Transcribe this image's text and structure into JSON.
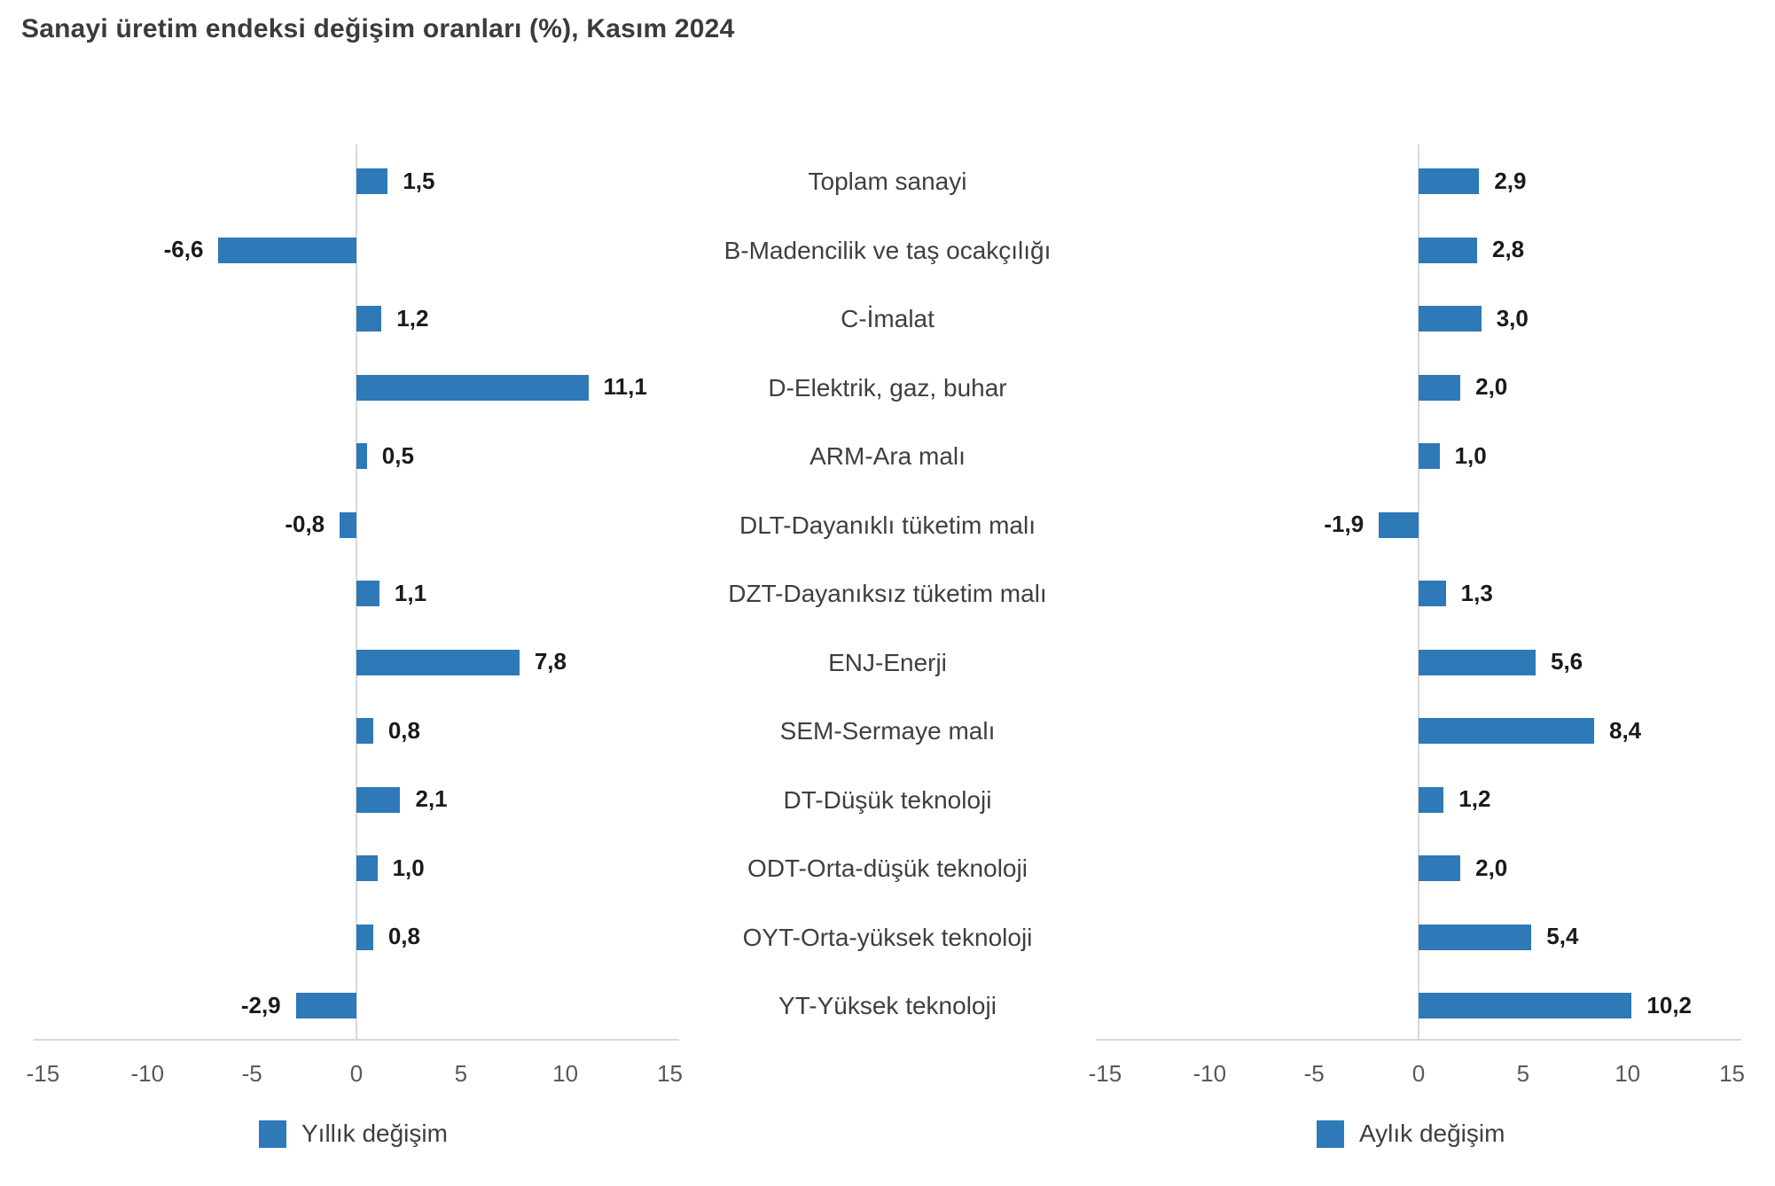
{
  "title": "Sanayi üretim endeksi değişim oranları (%), Kasım 2024",
  "chart_data": {
    "type": "bar",
    "orientation": "horizontal",
    "grid": false,
    "bar_color": "#2e79b7",
    "axis_color": "#d9d9d9",
    "categories": [
      "Toplam sanayi",
      "B-Madencilik ve taş ocakçılığı",
      "C-İmalat",
      "D-Elektrik, gaz, buhar",
      "ARM-Ara malı",
      "DLT-Dayanıklı tüketim malı",
      "DZT-Dayanıksız tüketim malı",
      "ENJ-Enerji",
      "SEM-Sermaye malı",
      "DT-Düşük teknoloji",
      "ODT-Orta-düşük teknoloji",
      "OYT-Orta-yüksek teknoloji",
      "YT-Yüksek teknoloji"
    ],
    "series": [
      {
        "name": "Yıllık değişim",
        "panel": "left",
        "values": [
          1.5,
          -6.6,
          1.2,
          11.1,
          0.5,
          -0.8,
          1.1,
          7.8,
          0.8,
          2.1,
          1.0,
          0.8,
          -2.9
        ],
        "labels": [
          "1,5",
          "-6,6",
          "1,2",
          "11,1",
          "0,5",
          "-0,8",
          "1,1",
          "7,8",
          "0,8",
          "2,1",
          "1,0",
          "0,8",
          "-2,9"
        ]
      },
      {
        "name": "Aylık değişim",
        "panel": "right",
        "values": [
          2.9,
          2.8,
          3.0,
          2.0,
          1.0,
          -1.9,
          1.3,
          5.6,
          8.4,
          1.2,
          2.0,
          5.4,
          10.2
        ],
        "labels": [
          "2,9",
          "2,8",
          "3,0",
          "2,0",
          "1,0",
          "-1,9",
          "1,3",
          "5,6",
          "8,4",
          "1,2",
          "2,0",
          "5,4",
          "10,2"
        ]
      }
    ],
    "x_axis": {
      "min": -15,
      "max": 15,
      "ticks": [
        "-15",
        "-10",
        "-5",
        "0",
        "5",
        "10",
        "15"
      ]
    },
    "legend_position": "bottom"
  },
  "legend": {
    "annual_label": "Yıllık değişim",
    "monthly_label": "Aylık değişim"
  }
}
